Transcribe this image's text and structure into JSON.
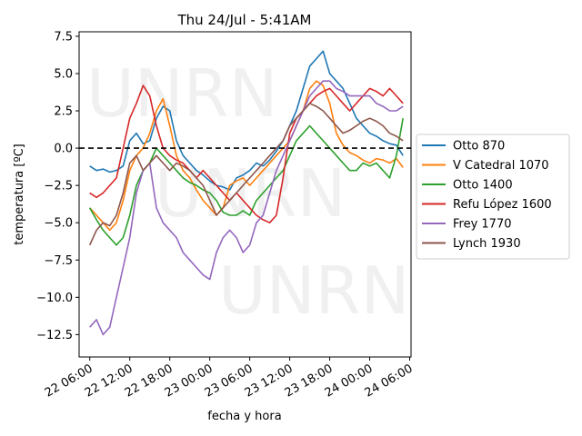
{
  "chart_data": {
    "type": "line",
    "title": "Thu 24/Jul - 5:41AM",
    "xlabel": "fecha y hora",
    "ylabel": "temperatura [ºC]",
    "x_unit": "hours",
    "xlim": [
      -1.6,
      48.2
    ],
    "ylim": [
      -14,
      7.8
    ],
    "x_ticks": [
      {
        "x": 0,
        "label": "22 06:00"
      },
      {
        "x": 6,
        "label": "22 12:00"
      },
      {
        "x": 12,
        "label": "22 18:00"
      },
      {
        "x": 18,
        "label": "23 00:00"
      },
      {
        "x": 24,
        "label": "23 06:00"
      },
      {
        "x": 30,
        "label": "23 12:00"
      },
      {
        "x": 36,
        "label": "23 18:00"
      },
      {
        "x": 42,
        "label": "24 00:00"
      },
      {
        "x": 48,
        "label": "24 06:00"
      }
    ],
    "y_ticks": [
      {
        "y": 7.5,
        "label": "7.5"
      },
      {
        "y": 5.0,
        "label": "5.0"
      },
      {
        "y": 2.5,
        "label": "2.5"
      },
      {
        "y": 0.0,
        "label": "0.0"
      },
      {
        "y": -2.5,
        "label": "−2.5"
      },
      {
        "y": -5.0,
        "label": "−5.0"
      },
      {
        "y": -7.5,
        "label": "−7.5"
      },
      {
        "y": -10.0,
        "label": "−10.0"
      },
      {
        "y": -12.5,
        "label": "−12.5"
      }
    ],
    "reference_line": {
      "y": 0,
      "style": "dashed",
      "color": "#000000"
    },
    "grid": false,
    "legend_position": "outside-right",
    "watermark": "UNRN",
    "series": [
      {
        "name": "Otto 870",
        "color": "#1f77b4",
        "points": [
          [
            0,
            -1.2
          ],
          [
            1,
            -1.5
          ],
          [
            2,
            -1.4
          ],
          [
            3,
            -1.6
          ],
          [
            4,
            -1.5
          ],
          [
            5,
            -1.2
          ],
          [
            6,
            0.5
          ],
          [
            7,
            1.0
          ],
          [
            8,
            0.3
          ],
          [
            9,
            0.5
          ],
          [
            10,
            2.0
          ],
          [
            11,
            2.8
          ],
          [
            12,
            2.5
          ],
          [
            13,
            0.5
          ],
          [
            14,
            -0.5
          ],
          [
            15,
            -1.0
          ],
          [
            16,
            -1.5
          ],
          [
            17,
            -1.8
          ],
          [
            18,
            -2.2
          ],
          [
            19,
            -2.5
          ],
          [
            20,
            -2.6
          ],
          [
            21,
            -2.8
          ],
          [
            22,
            -2.0
          ],
          [
            23,
            -1.8
          ],
          [
            24,
            -1.5
          ],
          [
            25,
            -1.0
          ],
          [
            26,
            -1.2
          ],
          [
            27,
            -0.8
          ],
          [
            28,
            -0.2
          ],
          [
            29,
            0.5
          ],
          [
            30,
            1.5
          ],
          [
            31,
            2.5
          ],
          [
            32,
            4.0
          ],
          [
            33,
            5.5
          ],
          [
            34,
            6.0
          ],
          [
            35,
            6.5
          ],
          [
            36,
            5.0
          ],
          [
            37,
            4.5
          ],
          [
            38,
            4.0
          ],
          [
            39,
            3.0
          ],
          [
            40,
            2.0
          ],
          [
            41,
            1.5
          ],
          [
            42,
            1.0
          ],
          [
            43,
            0.8
          ],
          [
            44,
            0.5
          ],
          [
            45,
            0.3
          ],
          [
            46,
            0.2
          ],
          [
            47,
            -0.5
          ]
        ]
      },
      {
        "name": "V Catedral 1070",
        "color": "#ff7f0e",
        "points": [
          [
            0,
            -4.0
          ],
          [
            1,
            -4.5
          ],
          [
            2,
            -5.0
          ],
          [
            3,
            -5.5
          ],
          [
            4,
            -5.0
          ],
          [
            5,
            -3.5
          ],
          [
            6,
            -1.5
          ],
          [
            7,
            -0.5
          ],
          [
            8,
            0.0
          ],
          [
            9,
            1.0
          ],
          [
            10,
            2.5
          ],
          [
            11,
            3.3
          ],
          [
            12,
            1.5
          ],
          [
            13,
            -0.5
          ],
          [
            14,
            -1.5
          ],
          [
            15,
            -2.0
          ],
          [
            16,
            -2.8
          ],
          [
            17,
            -3.5
          ],
          [
            18,
            -4.0
          ],
          [
            19,
            -4.5
          ],
          [
            20,
            -4.0
          ],
          [
            21,
            -2.5
          ],
          [
            22,
            -2.2
          ],
          [
            23,
            -2.0
          ],
          [
            24,
            -2.5
          ],
          [
            25,
            -2.0
          ],
          [
            26,
            -1.5
          ],
          [
            27,
            -1.0
          ],
          [
            28,
            -0.5
          ],
          [
            29,
            0.0
          ],
          [
            30,
            0.5
          ],
          [
            31,
            1.5
          ],
          [
            32,
            2.5
          ],
          [
            33,
            4.0
          ],
          [
            34,
            4.5
          ],
          [
            35,
            4.2
          ],
          [
            36,
            3.0
          ],
          [
            37,
            1.0
          ],
          [
            38,
            0.2
          ],
          [
            39,
            -0.3
          ],
          [
            40,
            -0.5
          ],
          [
            41,
            -0.8
          ],
          [
            42,
            -1.0
          ],
          [
            43,
            -0.7
          ],
          [
            44,
            -0.8
          ],
          [
            45,
            -1.0
          ],
          [
            46,
            -0.7
          ],
          [
            47,
            -1.3
          ]
        ]
      },
      {
        "name": "Otto 1400",
        "color": "#2ca02c",
        "points": [
          [
            0,
            -4.0
          ],
          [
            1,
            -4.8
          ],
          [
            2,
            -5.5
          ],
          [
            3,
            -6.0
          ],
          [
            4,
            -6.5
          ],
          [
            5,
            -6.0
          ],
          [
            6,
            -4.5
          ],
          [
            7,
            -2.5
          ],
          [
            8,
            -1.5
          ],
          [
            9,
            -1.0
          ],
          [
            10,
            0.0
          ],
          [
            11,
            -0.5
          ],
          [
            12,
            -1.0
          ],
          [
            13,
            -1.5
          ],
          [
            14,
            -2.0
          ],
          [
            15,
            -2.3
          ],
          [
            16,
            -2.5
          ],
          [
            17,
            -2.8
          ],
          [
            18,
            -3.0
          ],
          [
            19,
            -3.5
          ],
          [
            20,
            -4.3
          ],
          [
            21,
            -4.5
          ],
          [
            22,
            -4.5
          ],
          [
            23,
            -4.2
          ],
          [
            24,
            -4.5
          ],
          [
            25,
            -3.5
          ],
          [
            26,
            -3.0
          ],
          [
            27,
            -2.5
          ],
          [
            28,
            -2.0
          ],
          [
            29,
            -1.5
          ],
          [
            30,
            -0.5
          ],
          [
            31,
            0.5
          ],
          [
            32,
            1.0
          ],
          [
            33,
            1.5
          ],
          [
            34,
            1.0
          ],
          [
            35,
            0.5
          ],
          [
            36,
            0.0
          ],
          [
            37,
            -0.5
          ],
          [
            38,
            -1.0
          ],
          [
            39,
            -1.5
          ],
          [
            40,
            -1.5
          ],
          [
            41,
            -1.0
          ],
          [
            42,
            -1.2
          ],
          [
            43,
            -1.0
          ],
          [
            44,
            -1.5
          ],
          [
            45,
            -2.0
          ],
          [
            46,
            -0.5
          ],
          [
            47,
            2.0
          ]
        ]
      },
      {
        "name": "Refu López 1600",
        "color": "#d62728",
        "points": [
          [
            0,
            -3.0
          ],
          [
            1,
            -3.3
          ],
          [
            2,
            -3.0
          ],
          [
            3,
            -2.5
          ],
          [
            4,
            -2.0
          ],
          [
            5,
            0.0
          ],
          [
            6,
            2.0
          ],
          [
            7,
            3.0
          ],
          [
            8,
            4.2
          ],
          [
            9,
            3.5
          ],
          [
            10,
            1.5
          ],
          [
            11,
            0.0
          ],
          [
            12,
            -0.5
          ],
          [
            13,
            -0.8
          ],
          [
            14,
            -1.0
          ],
          [
            15,
            -1.5
          ],
          [
            16,
            -2.0
          ],
          [
            17,
            -1.5
          ],
          [
            18,
            -2.0
          ],
          [
            19,
            -2.5
          ],
          [
            20,
            -3.0
          ],
          [
            21,
            -3.5
          ],
          [
            22,
            -3.0
          ],
          [
            23,
            -3.5
          ],
          [
            24,
            -4.0
          ],
          [
            25,
            -4.5
          ],
          [
            26,
            -4.8
          ],
          [
            27,
            -5.0
          ],
          [
            28,
            -4.5
          ],
          [
            29,
            -2.0
          ],
          [
            30,
            1.0
          ],
          [
            31,
            2.0
          ],
          [
            32,
            2.5
          ],
          [
            33,
            3.0
          ],
          [
            34,
            3.5
          ],
          [
            35,
            3.8
          ],
          [
            36,
            4.0
          ],
          [
            37,
            3.5
          ],
          [
            38,
            3.0
          ],
          [
            39,
            2.5
          ],
          [
            40,
            3.0
          ],
          [
            41,
            3.5
          ],
          [
            42,
            4.0
          ],
          [
            43,
            3.8
          ],
          [
            44,
            3.5
          ],
          [
            45,
            4.0
          ],
          [
            46,
            3.5
          ],
          [
            47,
            3.0
          ]
        ]
      },
      {
        "name": "Frey 1770",
        "color": "#9467bd",
        "points": [
          [
            0,
            -12.0
          ],
          [
            1,
            -11.5
          ],
          [
            2,
            -12.5
          ],
          [
            3,
            -12.0
          ],
          [
            4,
            -10.0
          ],
          [
            5,
            -8.0
          ],
          [
            6,
            -6.0
          ],
          [
            7,
            -3.0
          ],
          [
            8,
            -1.5
          ],
          [
            9,
            -1.0
          ],
          [
            10,
            -4.0
          ],
          [
            11,
            -5.0
          ],
          [
            12,
            -5.5
          ],
          [
            13,
            -6.0
          ],
          [
            14,
            -7.0
          ],
          [
            15,
            -7.5
          ],
          [
            16,
            -8.0
          ],
          [
            17,
            -8.5
          ],
          [
            18,
            -8.8
          ],
          [
            19,
            -7.0
          ],
          [
            20,
            -6.0
          ],
          [
            21,
            -5.5
          ],
          [
            22,
            -6.0
          ],
          [
            23,
            -7.0
          ],
          [
            24,
            -6.5
          ],
          [
            25,
            -5.0
          ],
          [
            26,
            -4.5
          ],
          [
            27,
            -3.0
          ],
          [
            28,
            -1.5
          ],
          [
            29,
            -0.5
          ],
          [
            30,
            0.5
          ],
          [
            31,
            1.5
          ],
          [
            32,
            2.5
          ],
          [
            33,
            3.5
          ],
          [
            34,
            4.0
          ],
          [
            35,
            4.5
          ],
          [
            36,
            4.5
          ],
          [
            37,
            4.0
          ],
          [
            38,
            3.8
          ],
          [
            39,
            3.5
          ],
          [
            40,
            3.5
          ],
          [
            41,
            3.5
          ],
          [
            42,
            3.5
          ],
          [
            43,
            3.0
          ],
          [
            44,
            2.8
          ],
          [
            45,
            2.5
          ],
          [
            46,
            2.5
          ],
          [
            47,
            2.8
          ]
        ]
      },
      {
        "name": "Lynch 1930",
        "color": "#8c564b",
        "points": [
          [
            0,
            -6.5
          ],
          [
            1,
            -5.5
          ],
          [
            2,
            -5.0
          ],
          [
            3,
            -5.2
          ],
          [
            4,
            -4.5
          ],
          [
            5,
            -3.0
          ],
          [
            6,
            -1.0
          ],
          [
            7,
            -0.5
          ],
          [
            8,
            -1.5
          ],
          [
            9,
            -1.0
          ],
          [
            10,
            -0.5
          ],
          [
            11,
            -1.0
          ],
          [
            12,
            -1.5
          ],
          [
            13,
            -1.0
          ],
          [
            14,
            -1.2
          ],
          [
            15,
            -1.5
          ],
          [
            16,
            -2.0
          ],
          [
            17,
            -2.5
          ],
          [
            18,
            -3.5
          ],
          [
            19,
            -4.5
          ],
          [
            20,
            -4.0
          ],
          [
            21,
            -3.5
          ],
          [
            22,
            -3.0
          ],
          [
            23,
            -2.5
          ],
          [
            24,
            -2.0
          ],
          [
            25,
            -1.5
          ],
          [
            26,
            -1.0
          ],
          [
            27,
            -0.5
          ],
          [
            28,
            0.0
          ],
          [
            29,
            0.5
          ],
          [
            30,
            1.5
          ],
          [
            31,
            2.0
          ],
          [
            32,
            2.5
          ],
          [
            33,
            3.0
          ],
          [
            34,
            2.8
          ],
          [
            35,
            2.5
          ],
          [
            36,
            2.0
          ],
          [
            37,
            1.5
          ],
          [
            38,
            1.0
          ],
          [
            39,
            1.2
          ],
          [
            40,
            1.5
          ],
          [
            41,
            1.8
          ],
          [
            42,
            2.0
          ],
          [
            43,
            1.8
          ],
          [
            44,
            1.5
          ],
          [
            45,
            1.0
          ],
          [
            46,
            0.8
          ],
          [
            47,
            0.5
          ]
        ]
      }
    ]
  }
}
